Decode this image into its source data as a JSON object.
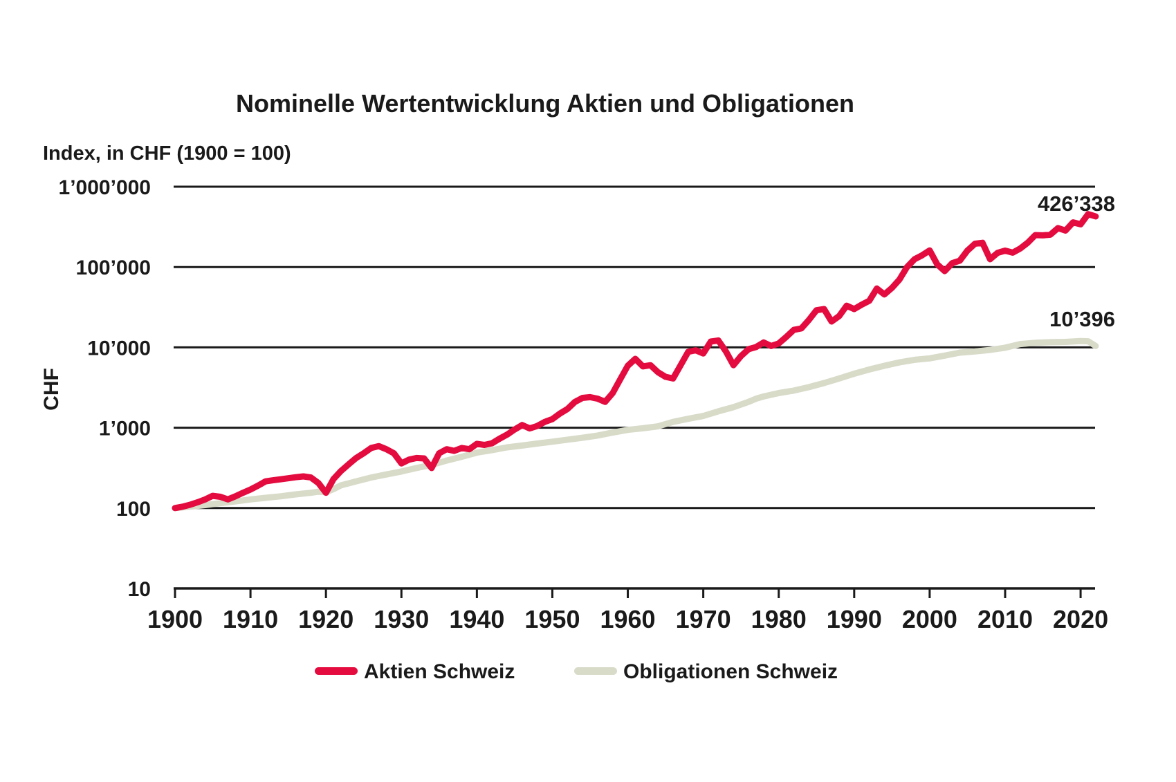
{
  "chart_data": {
    "type": "line",
    "title": "Nominelle Wertentwicklung Aktien und Obligationen",
    "subtitle": "Index, in CHF (1900 = 100)",
    "ylabel": "CHF",
    "y_scale": "log",
    "grid": "horizontal",
    "legend_position": "bottom",
    "x_range": [
      1900,
      2022
    ],
    "x_ticks": [
      1900,
      1910,
      1920,
      1930,
      1940,
      1950,
      1960,
      1970,
      1980,
      1990,
      2000,
      2010,
      2020
    ],
    "y_ticks": [
      {
        "label": "1’000’000",
        "value": 1000000
      },
      {
        "label": "100’000",
        "value": 100000
      },
      {
        "label": "10’000",
        "value": 10000
      },
      {
        "label": "1’000",
        "value": 1000
      },
      {
        "label": "100",
        "value": 100
      },
      {
        "label": "10",
        "value": 10
      }
    ],
    "series": [
      {
        "name": "Aktien Schweiz",
        "color": "#e40b3f",
        "end_label": "426’338",
        "end_value": 426338,
        "points": [
          [
            1900,
            100
          ],
          [
            1901,
            104
          ],
          [
            1902,
            110
          ],
          [
            1903,
            118
          ],
          [
            1904,
            128
          ],
          [
            1905,
            142
          ],
          [
            1906,
            138
          ],
          [
            1907,
            128
          ],
          [
            1908,
            140
          ],
          [
            1909,
            155
          ],
          [
            1910,
            170
          ],
          [
            1911,
            190
          ],
          [
            1912,
            215
          ],
          [
            1913,
            222
          ],
          [
            1914,
            228
          ],
          [
            1915,
            235
          ],
          [
            1916,
            242
          ],
          [
            1917,
            248
          ],
          [
            1918,
            240
          ],
          [
            1919,
            205
          ],
          [
            1920,
            155
          ],
          [
            1921,
            230
          ],
          [
            1922,
            290
          ],
          [
            1923,
            350
          ],
          [
            1924,
            420
          ],
          [
            1925,
            480
          ],
          [
            1926,
            560
          ],
          [
            1927,
            590
          ],
          [
            1928,
            540
          ],
          [
            1929,
            480
          ],
          [
            1930,
            360
          ],
          [
            1931,
            400
          ],
          [
            1932,
            420
          ],
          [
            1933,
            415
          ],
          [
            1934,
            315
          ],
          [
            1935,
            480
          ],
          [
            1936,
            540
          ],
          [
            1937,
            515
          ],
          [
            1938,
            560
          ],
          [
            1939,
            540
          ],
          [
            1940,
            630
          ],
          [
            1941,
            610
          ],
          [
            1942,
            640
          ],
          [
            1943,
            730
          ],
          [
            1944,
            820
          ],
          [
            1945,
            950
          ],
          [
            1946,
            1080
          ],
          [
            1947,
            980
          ],
          [
            1948,
            1050
          ],
          [
            1949,
            1180
          ],
          [
            1950,
            1280
          ],
          [
            1951,
            1500
          ],
          [
            1952,
            1710
          ],
          [
            1953,
            2100
          ],
          [
            1954,
            2350
          ],
          [
            1955,
            2400
          ],
          [
            1956,
            2300
          ],
          [
            1957,
            2100
          ],
          [
            1958,
            2700
          ],
          [
            1959,
            4000
          ],
          [
            1960,
            5900
          ],
          [
            1961,
            7200
          ],
          [
            1962,
            5800
          ],
          [
            1963,
            6000
          ],
          [
            1964,
            4900
          ],
          [
            1965,
            4300
          ],
          [
            1966,
            4100
          ],
          [
            1967,
            6000
          ],
          [
            1968,
            8800
          ],
          [
            1969,
            9200
          ],
          [
            1970,
            8400
          ],
          [
            1971,
            11800
          ],
          [
            1972,
            12200
          ],
          [
            1973,
            8900
          ],
          [
            1974,
            6000
          ],
          [
            1975,
            7800
          ],
          [
            1976,
            9500
          ],
          [
            1977,
            10100
          ],
          [
            1978,
            11500
          ],
          [
            1979,
            10400
          ],
          [
            1980,
            11200
          ],
          [
            1981,
            13500
          ],
          [
            1982,
            16500
          ],
          [
            1983,
            17200
          ],
          [
            1984,
            22000
          ],
          [
            1985,
            29000
          ],
          [
            1986,
            30000
          ],
          [
            1987,
            21000
          ],
          [
            1988,
            24500
          ],
          [
            1989,
            33000
          ],
          [
            1990,
            30000
          ],
          [
            1991,
            34000
          ],
          [
            1992,
            38000
          ],
          [
            1993,
            54000
          ],
          [
            1994,
            45500
          ],
          [
            1995,
            55000
          ],
          [
            1996,
            70000
          ],
          [
            1997,
            100000
          ],
          [
            1998,
            125000
          ],
          [
            1999,
            140000
          ],
          [
            2000,
            161000
          ],
          [
            2001,
            108000
          ],
          [
            2002,
            89000
          ],
          [
            2003,
            112000
          ],
          [
            2004,
            120000
          ],
          [
            2005,
            160000
          ],
          [
            2006,
            195000
          ],
          [
            2007,
            200000
          ],
          [
            2008,
            125000
          ],
          [
            2009,
            150000
          ],
          [
            2010,
            160000
          ],
          [
            2011,
            151000
          ],
          [
            2012,
            170000
          ],
          [
            2013,
            201000
          ],
          [
            2014,
            250000
          ],
          [
            2015,
            248000
          ],
          [
            2016,
            253000
          ],
          [
            2017,
            305000
          ],
          [
            2018,
            284000
          ],
          [
            2019,
            360000
          ],
          [
            2020,
            340000
          ],
          [
            2021,
            455000
          ],
          [
            2022,
            426338
          ]
        ]
      },
      {
        "name": "Obligationen Schweiz",
        "color": "#d7dbc8",
        "end_label": "10’396",
        "end_value": 10396,
        "points": [
          [
            1900,
            100
          ],
          [
            1902,
            104
          ],
          [
            1904,
            109
          ],
          [
            1906,
            115
          ],
          [
            1908,
            121
          ],
          [
            1910,
            128
          ],
          [
            1912,
            134
          ],
          [
            1914,
            140
          ],
          [
            1916,
            148
          ],
          [
            1918,
            155
          ],
          [
            1919,
            160
          ],
          [
            1920,
            158
          ],
          [
            1921,
            172
          ],
          [
            1922,
            192
          ],
          [
            1924,
            215
          ],
          [
            1926,
            240
          ],
          [
            1928,
            262
          ],
          [
            1930,
            285
          ],
          [
            1932,
            315
          ],
          [
            1934,
            345
          ],
          [
            1936,
            390
          ],
          [
            1938,
            435
          ],
          [
            1940,
            490
          ],
          [
            1942,
            525
          ],
          [
            1944,
            570
          ],
          [
            1946,
            600
          ],
          [
            1948,
            635
          ],
          [
            1950,
            670
          ],
          [
            1952,
            710
          ],
          [
            1954,
            750
          ],
          [
            1956,
            800
          ],
          [
            1958,
            870
          ],
          [
            1960,
            940
          ],
          [
            1962,
            985
          ],
          [
            1964,
            1040
          ],
          [
            1966,
            1180
          ],
          [
            1968,
            1290
          ],
          [
            1970,
            1400
          ],
          [
            1972,
            1600
          ],
          [
            1974,
            1800
          ],
          [
            1976,
            2100
          ],
          [
            1977,
            2300
          ],
          [
            1978,
            2450
          ],
          [
            1980,
            2700
          ],
          [
            1982,
            2900
          ],
          [
            1984,
            3200
          ],
          [
            1986,
            3600
          ],
          [
            1988,
            4100
          ],
          [
            1990,
            4700
          ],
          [
            1992,
            5300
          ],
          [
            1994,
            5900
          ],
          [
            1996,
            6500
          ],
          [
            1998,
            7000
          ],
          [
            2000,
            7300
          ],
          [
            2002,
            7900
          ],
          [
            2004,
            8600
          ],
          [
            2006,
            8900
          ],
          [
            2008,
            9300
          ],
          [
            2010,
            9900
          ],
          [
            2012,
            11000
          ],
          [
            2014,
            11400
          ],
          [
            2016,
            11600
          ],
          [
            2018,
            11700
          ],
          [
            2020,
            12000
          ],
          [
            2021,
            11900
          ],
          [
            2022,
            10396
          ]
        ]
      }
    ]
  }
}
